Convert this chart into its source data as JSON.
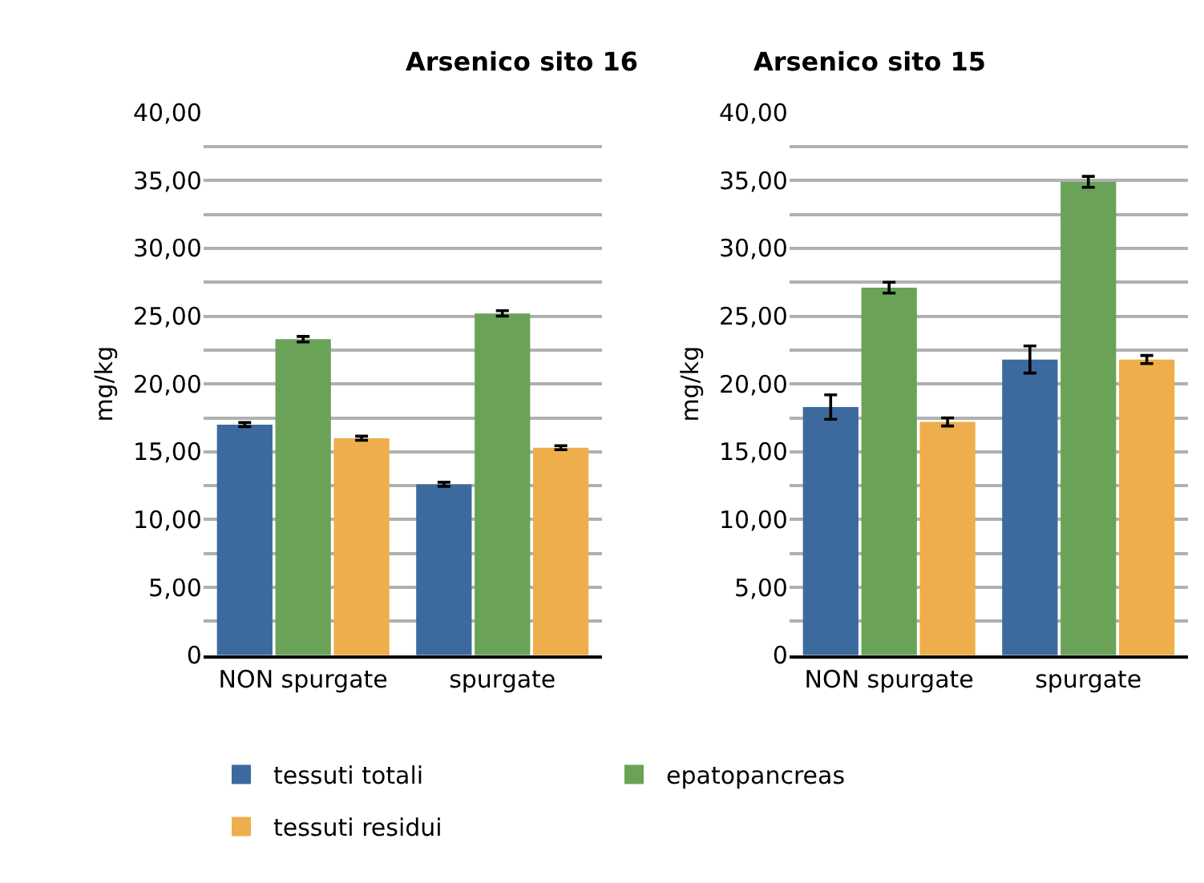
{
  "chart_data": [
    {
      "type": "bar",
      "title": "Arsenico sito 16",
      "ylabel": "mg/kg",
      "categories": [
        "NON spurgate",
        "spurgate"
      ],
      "series": [
        {
          "name": "tessuti totali",
          "color": "#3c6a9e",
          "values": [
            17.0,
            12.6
          ],
          "errors": [
            0.15,
            0.15
          ]
        },
        {
          "name": "epatopancreas",
          "color": "#6aa357",
          "values": [
            23.3,
            25.2
          ],
          "errors": [
            0.2,
            0.2
          ]
        },
        {
          "name": "tessuti residui",
          "color": "#eeae4b",
          "values": [
            16.0,
            15.3
          ],
          "errors": [
            0.15,
            0.15
          ]
        }
      ],
      "ylim": [
        0,
        40
      ],
      "yticks": [
        {
          "value": 0,
          "label": "0"
        },
        {
          "value": 2.5,
          "label": null
        },
        {
          "value": 5,
          "label": "5,00"
        },
        {
          "value": 7.5,
          "label": null
        },
        {
          "value": 10,
          "label": "10,00"
        },
        {
          "value": 12.5,
          "label": null
        },
        {
          "value": 15,
          "label": "15,00"
        },
        {
          "value": 17.5,
          "label": null
        },
        {
          "value": 20,
          "label": "20,00"
        },
        {
          "value": 22.5,
          "label": null
        },
        {
          "value": 25,
          "label": "25,00"
        },
        {
          "value": 27.5,
          "label": null
        },
        {
          "value": 30,
          "label": "30,00"
        },
        {
          "value": 32.5,
          "label": null
        },
        {
          "value": 35,
          "label": "35,00"
        },
        {
          "value": 37.5,
          "label": null
        },
        {
          "value": 40,
          "label": "40,00"
        }
      ],
      "grid": "y",
      "legend": "bottom"
    },
    {
      "type": "bar",
      "title": "Arsenico sito 15",
      "ylabel": "mg/kg",
      "categories": [
        "NON spurgate",
        "spurgate"
      ],
      "series": [
        {
          "name": "tessuti totali",
          "color": "#3c6a9e",
          "values": [
            18.3,
            21.8
          ],
          "errors": [
            0.9,
            1.0
          ]
        },
        {
          "name": "epatopancreas",
          "color": "#6aa357",
          "values": [
            27.1,
            34.9
          ],
          "errors": [
            0.4,
            0.4
          ]
        },
        {
          "name": "tessuti residui",
          "color": "#eeae4b",
          "values": [
            17.2,
            21.8
          ],
          "errors": [
            0.3,
            0.3
          ]
        }
      ],
      "ylim": [
        0,
        40
      ],
      "yticks": [
        {
          "value": 0,
          "label": "0"
        },
        {
          "value": 2.5,
          "label": null
        },
        {
          "value": 5,
          "label": "5,00"
        },
        {
          "value": 7.5,
          "label": null
        },
        {
          "value": 10,
          "label": "10,00"
        },
        {
          "value": 12.5,
          "label": null
        },
        {
          "value": 15,
          "label": "15,00"
        },
        {
          "value": 17.5,
          "label": null
        },
        {
          "value": 20,
          "label": "20,00"
        },
        {
          "value": 22.5,
          "label": null
        },
        {
          "value": 25,
          "label": "25,00"
        },
        {
          "value": 27.5,
          "label": null
        },
        {
          "value": 30,
          "label": "30,00"
        },
        {
          "value": 32.5,
          "label": null
        },
        {
          "value": 35,
          "label": "35,00"
        },
        {
          "value": 37.5,
          "label": null
        },
        {
          "value": 40,
          "label": "40,00"
        }
      ],
      "grid": "y",
      "legend": "bottom"
    }
  ]
}
